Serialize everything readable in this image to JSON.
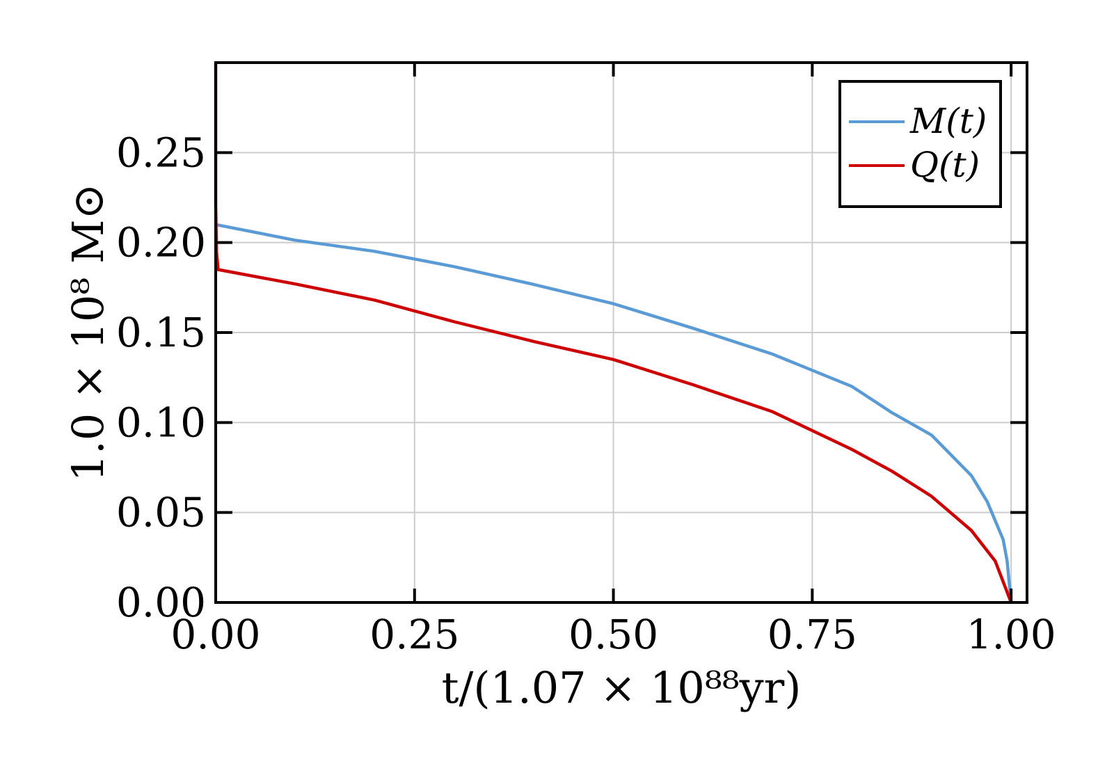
{
  "chart_data": {
    "type": "line",
    "xlabel": "t/(1.07 × 10⁸⁸yr)",
    "ylabel": "1.0 × 10⁸ M⊙",
    "xlim": [
      0,
      1.02
    ],
    "ylim": [
      0,
      0.3
    ],
    "x_ticks": [
      0,
      0.25,
      0.5,
      0.75,
      1.0
    ],
    "x_tick_labels": [
      "0.00",
      "0.25",
      "0.50",
      "0.75",
      "1.00"
    ],
    "y_ticks": [
      0,
      0.05,
      0.1,
      0.15,
      0.2,
      0.25
    ],
    "y_tick_labels": [
      "0.00",
      "0.05",
      "0.10",
      "0.15",
      "0.20",
      "0.25"
    ],
    "grid": true,
    "legend_position": "top-right",
    "series": [
      {
        "name": "M(t)",
        "color": "#5b9bd5",
        "x": [
          0,
          0.1,
          0.2,
          0.3,
          0.4,
          0.5,
          0.6,
          0.7,
          0.8,
          0.85,
          0.9,
          0.95,
          0.97,
          0.99,
          0.995,
          1.0
        ],
        "y": [
          0.21,
          0.2013,
          0.1951,
          0.1866,
          0.1767,
          0.166,
          0.1524,
          0.138,
          0.12,
          0.1055,
          0.093,
          0.0705,
          0.056,
          0.035,
          0.023,
          0.0
        ]
      },
      {
        "name": "Q(t)",
        "color": "#cc0000",
        "x": [
          0,
          0,
          0.001,
          0.003,
          0.1,
          0.2,
          0.3,
          0.4,
          0.5,
          0.6,
          0.7,
          0.8,
          0.85,
          0.9,
          0.95,
          0.98,
          1.0
        ],
        "y": [
          0.3,
          0.22,
          0.195,
          0.185,
          0.177,
          0.168,
          0.156,
          0.145,
          0.135,
          0.121,
          0.106,
          0.085,
          0.073,
          0.059,
          0.04,
          0.023,
          0.0
        ]
      }
    ]
  }
}
